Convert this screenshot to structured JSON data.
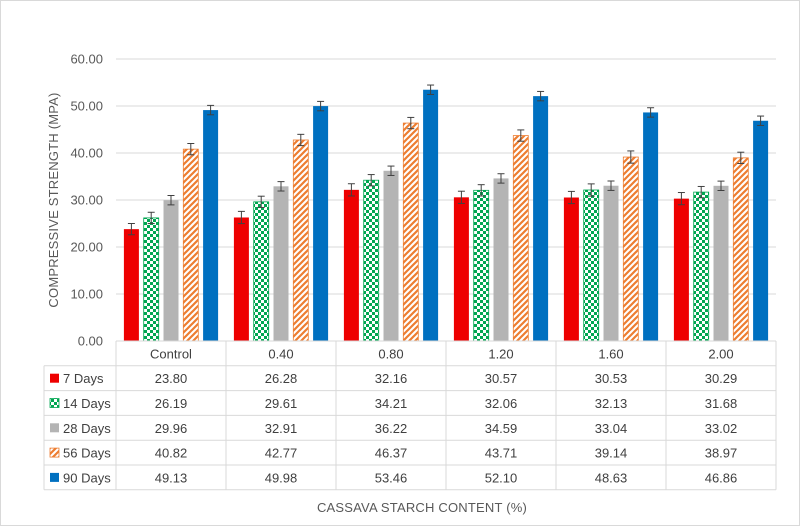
{
  "chart_data": {
    "type": "bar",
    "ylabel": "COMPRESSIVE STRENGTH (MPA)",
    "xlabel": "CASSAVA STARCH CONTENT (%)",
    "ylim": [
      0,
      60
    ],
    "yticks": [
      "0.00",
      "10.00",
      "20.00",
      "30.00",
      "40.00",
      "50.00",
      "60.00"
    ],
    "grid": true,
    "legend": "data-table-left",
    "categories": [
      "Control",
      "0.40",
      "0.80",
      "1.20",
      "1.60",
      "2.00"
    ],
    "series": [
      {
        "name": "7 Days",
        "color": "#ee0000",
        "pattern": "solid",
        "values": [
          23.8,
          26.28,
          32.16,
          30.57,
          30.53,
          30.29
        ],
        "labels": [
          "23.80",
          "26.28",
          "32.16",
          "30.57",
          "30.53",
          "30.29"
        ],
        "error": [
          1.2,
          1.3,
          1.3,
          1.3,
          1.3,
          1.3
        ]
      },
      {
        "name": "14 Days",
        "color": "#00a651",
        "pattern": "checker",
        "values": [
          26.19,
          29.61,
          34.21,
          32.06,
          32.13,
          31.68
        ],
        "labels": [
          "26.19",
          "29.61",
          "34.21",
          "32.06",
          "32.13",
          "31.68"
        ],
        "error": [
          1.2,
          1.2,
          1.2,
          1.2,
          1.3,
          1.2
        ]
      },
      {
        "name": "28 Days",
        "color": "#b4b4b4",
        "pattern": "solid",
        "values": [
          29.96,
          32.91,
          36.22,
          34.59,
          33.04,
          33.02
        ],
        "labels": [
          "29.96",
          "32.91",
          "36.22",
          "34.59",
          "33.04",
          "33.02"
        ],
        "error": [
          1.0,
          1.0,
          1.0,
          1.0,
          1.0,
          1.0
        ]
      },
      {
        "name": "56 Days",
        "color": "#ed7d31",
        "pattern": "diagonal",
        "values": [
          40.82,
          42.77,
          46.37,
          43.71,
          39.14,
          38.97
        ],
        "labels": [
          "40.82",
          "42.77",
          "46.37",
          "43.71",
          "39.14",
          "38.97"
        ],
        "error": [
          1.2,
          1.2,
          1.2,
          1.2,
          1.3,
          1.2
        ]
      },
      {
        "name": "90 Days",
        "color": "#0070c0",
        "pattern": "solid",
        "values": [
          49.13,
          49.98,
          53.46,
          52.1,
          48.63,
          46.86
        ],
        "labels": [
          "49.13",
          "49.98",
          "53.46",
          "52.10",
          "48.63",
          "46.86"
        ],
        "error": [
          1.0,
          1.0,
          1.0,
          1.0,
          1.0,
          1.0
        ]
      }
    ]
  }
}
